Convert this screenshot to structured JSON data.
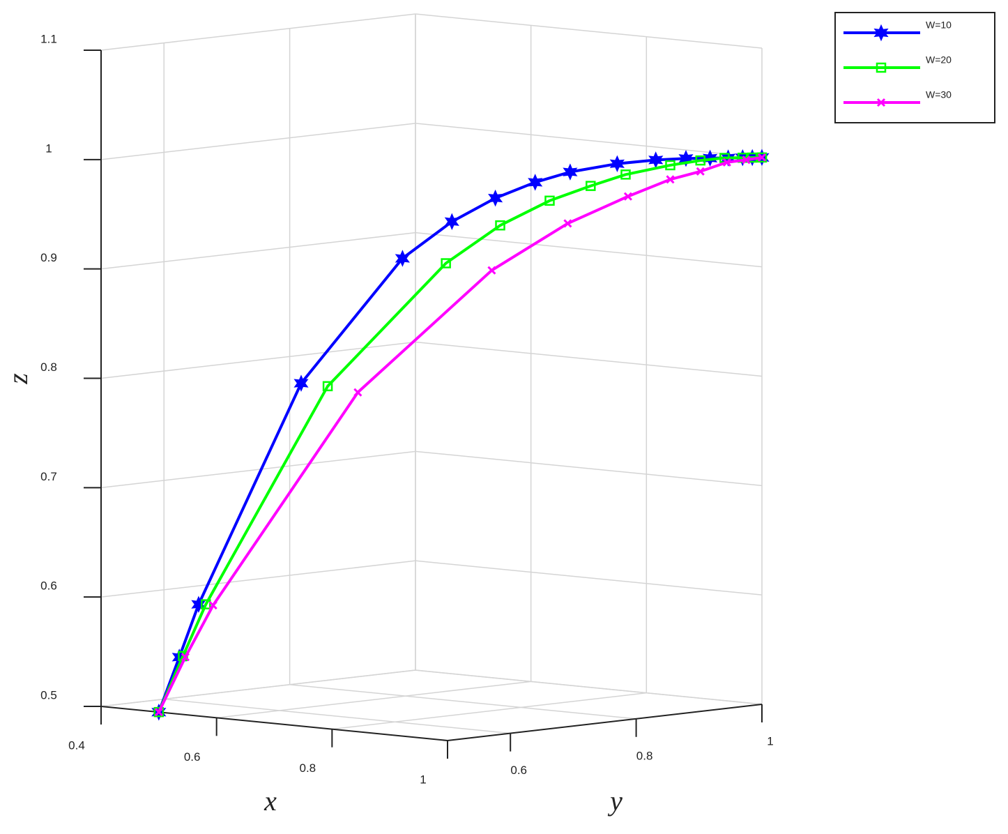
{
  "chart_data": {
    "type": "line3d",
    "xlabel": "x",
    "ylabel": "y",
    "zlabel": "z",
    "xlim": [
      0.4,
      1
    ],
    "ylim": [
      0.5,
      1
    ],
    "zlim": [
      0.5,
      1.1
    ],
    "xticks": [
      0.4,
      0.6,
      0.8,
      1
    ],
    "yticks": [
      0.6,
      0.8,
      1
    ],
    "zticks": [
      0.5,
      0.6,
      0.7,
      0.8,
      0.9,
      1,
      1.1
    ],
    "grid": true,
    "legend": "top-right",
    "series": [
      {
        "name": "W=10",
        "color": "#0000ff",
        "marker": "hexagram",
        "x": [
          0.5,
          0.517,
          0.533,
          0.618,
          0.702,
          0.743,
          0.779,
          0.812,
          0.841,
          0.88,
          0.912,
          0.937,
          0.957,
          0.972,
          0.984,
          0.992,
          1
        ],
        "y": [
          0.5,
          0.517,
          0.533,
          0.618,
          0.702,
          0.743,
          0.779,
          0.812,
          0.841,
          0.88,
          0.912,
          0.937,
          0.957,
          0.972,
          0.984,
          0.992,
          1
        ],
        "z": [
          0.5,
          0.55,
          0.598,
          0.799,
          0.912,
          0.945,
          0.966,
          0.98,
          0.989,
          0.996,
          0.999,
          1,
          1,
          1,
          1,
          1,
          1
        ]
      },
      {
        "name": "W=20",
        "color": "#00ff00",
        "marker": "square",
        "x": [
          0.5,
          0.52,
          0.539,
          0.64,
          0.738,
          0.783,
          0.824,
          0.858,
          0.887,
          0.924,
          0.949,
          0.969,
          0.984,
          0.992,
          1
        ],
        "y": [
          0.5,
          0.52,
          0.539,
          0.64,
          0.738,
          0.783,
          0.824,
          0.858,
          0.887,
          0.924,
          0.949,
          0.969,
          0.984,
          0.992,
          1
        ],
        "z": [
          0.5,
          0.551,
          0.598,
          0.796,
          0.907,
          0.941,
          0.963,
          0.976,
          0.986,
          0.994,
          0.998,
          1,
          1,
          1,
          1
        ]
      },
      {
        "name": "W=30",
        "color": "#ff00ff",
        "marker": "x",
        "x": [
          0.5,
          0.522,
          0.545,
          0.665,
          0.776,
          0.839,
          0.889,
          0.924,
          0.949,
          0.971,
          0.987,
          1
        ],
        "y": [
          0.5,
          0.522,
          0.545,
          0.665,
          0.776,
          0.839,
          0.889,
          0.924,
          0.949,
          0.971,
          0.987,
          1
        ],
        "z": [
          0.5,
          0.55,
          0.597,
          0.79,
          0.9,
          0.942,
          0.966,
          0.981,
          0.988,
          0.996,
          0.998,
          1
        ]
      }
    ]
  }
}
